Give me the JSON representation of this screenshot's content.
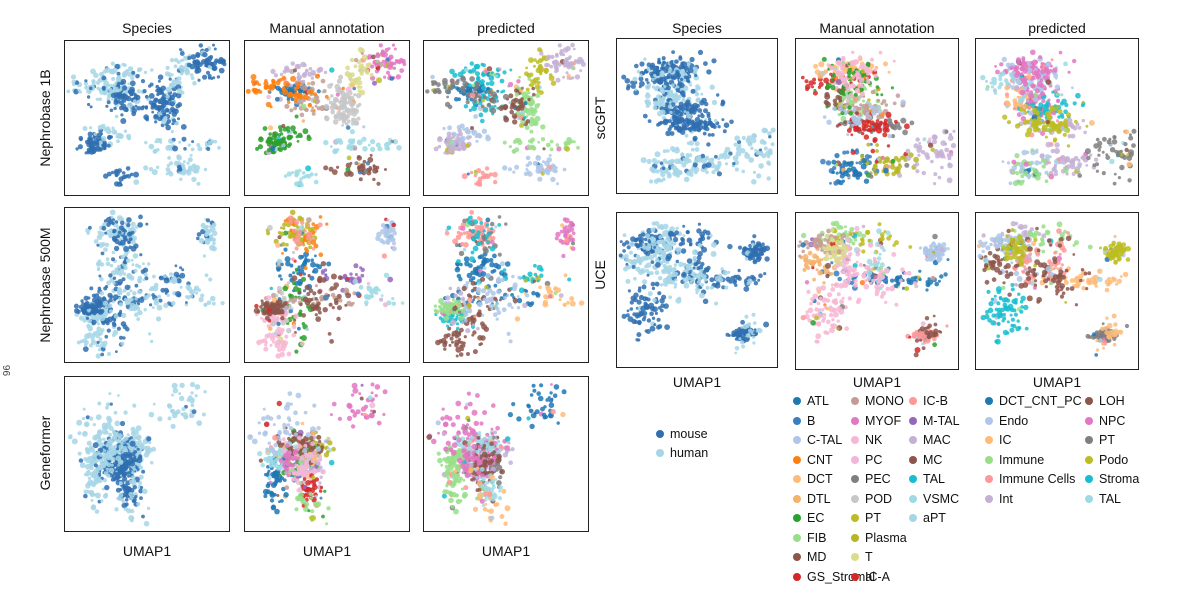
{
  "chart_data": {
    "type": "scatter",
    "subtype": "umap-embedding-grid",
    "left_group": {
      "column_titles": [
        "Species",
        "Manual annotation",
        "predicted"
      ],
      "row_labels": [
        "Nephrobase 1B",
        "Nephrobase 500M",
        "Geneformer"
      ],
      "xlabel": "UMAP1"
    },
    "right_group": {
      "column_titles": [
        "Species",
        "Manual annotation",
        "predicted"
      ],
      "row_labels": [
        "scGPT",
        "UCE"
      ],
      "xlabel": "UMAP1"
    },
    "species_legend": [
      {
        "label": "mouse",
        "color": "#2f6fb0"
      },
      {
        "label": "human",
        "color": "#a6d6e6"
      }
    ],
    "manual_annotation_legend": [
      {
        "label": "ATL",
        "color": "#1f77b4"
      },
      {
        "label": "B",
        "color": "#3a7ec0"
      },
      {
        "label": "C-TAL",
        "color": "#aec7e8"
      },
      {
        "label": "CNT",
        "color": "#ff7f0e"
      },
      {
        "label": "DCT",
        "color": "#ffbb78"
      },
      {
        "label": "DTL",
        "color": "#f5b26b"
      },
      {
        "label": "EC",
        "color": "#2ca02c"
      },
      {
        "label": "FIB",
        "color": "#98df8a"
      },
      {
        "label": "MD",
        "color": "#8c564b"
      },
      {
        "label": "GS_Stromal",
        "color": "#d62728"
      },
      {
        "label": "MONO",
        "color": "#c49c94"
      },
      {
        "label": "MYOF",
        "color": "#e377c2"
      },
      {
        "label": "NK",
        "color": "#f7b6d2"
      },
      {
        "label": "PC",
        "color": "#f0b7d8"
      },
      {
        "label": "PEC",
        "color": "#7f7f7f"
      },
      {
        "label": "POD",
        "color": "#c7c7c7"
      },
      {
        "label": "PT",
        "color": "#bcbd22"
      },
      {
        "label": "Plasma",
        "color": "#b8b624"
      },
      {
        "label": "T",
        "color": "#dbdb8d"
      },
      {
        "label": "IC-A",
        "color": "#d62728"
      },
      {
        "label": "IC-B",
        "color": "#ff9896"
      },
      {
        "label": "M-TAL",
        "color": "#9467bd"
      },
      {
        "label": "MAC",
        "color": "#c5b0d5"
      },
      {
        "label": "MC",
        "color": "#8c564b"
      },
      {
        "label": "TAL",
        "color": "#17becf"
      },
      {
        "label": "VSMC",
        "color": "#9edae5"
      },
      {
        "label": "aPT",
        "color": "#a6d6e6"
      }
    ],
    "predicted_legend": [
      {
        "label": "DCT_CNT_PC",
        "color": "#1f77b4"
      },
      {
        "label": "Endo",
        "color": "#aec7e8"
      },
      {
        "label": "IC",
        "color": "#ffbb78"
      },
      {
        "label": "Immune",
        "color": "#98df8a"
      },
      {
        "label": "Immune Cells",
        "color": "#ff9896"
      },
      {
        "label": "Int",
        "color": "#c5b0d5"
      },
      {
        "label": "LOH",
        "color": "#8c564b"
      },
      {
        "label": "NPC",
        "color": "#e377c2"
      },
      {
        "label": "PT",
        "color": "#7f7f7f"
      },
      {
        "label": "Podo",
        "color": "#bcbd22"
      },
      {
        "label": "Stroma",
        "color": "#17becf"
      },
      {
        "label": "TAL",
        "color": "#9edae5"
      }
    ]
  },
  "edge_mark": "96"
}
